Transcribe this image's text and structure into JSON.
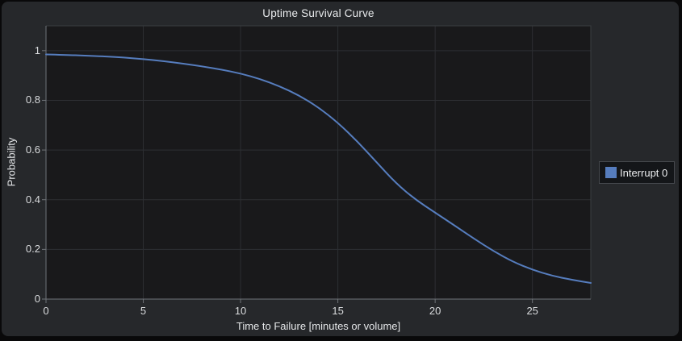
{
  "chart_data": {
    "type": "line",
    "title": "Uptime Survival Curve",
    "xlabel": "Time to Failure [minutes or volume]",
    "ylabel": "Probability",
    "xlim": [
      0,
      28
    ],
    "ylim": [
      0,
      1.1
    ],
    "grid": true,
    "legend_position": "right",
    "x_ticks": [
      0,
      5,
      10,
      15,
      20,
      25
    ],
    "x_tick_labels": [
      "0",
      "5",
      "10",
      "15",
      "20",
      "25"
    ],
    "y_ticks": [
      0,
      0.2,
      0.4,
      0.6,
      0.8,
      1
    ],
    "y_tick_labels": [
      "0",
      "0.2",
      "0.4",
      "0.6",
      "0.8",
      "1"
    ],
    "series": [
      {
        "name": "Interrupt 0",
        "color": "#567dbe",
        "x": [
          0,
          1,
          2,
          3,
          4,
          5,
          6,
          7,
          8,
          9,
          10,
          11,
          12,
          13,
          14,
          15,
          16,
          17,
          18,
          19,
          20,
          21,
          22,
          23,
          24,
          25,
          26,
          27,
          28
        ],
        "y": [
          0.985,
          0.983,
          0.98,
          0.977,
          0.972,
          0.966,
          0.958,
          0.948,
          0.937,
          0.924,
          0.908,
          0.886,
          0.857,
          0.82,
          0.772,
          0.71,
          0.635,
          0.55,
          0.465,
          0.4,
          0.348,
          0.296,
          0.243,
          0.193,
          0.15,
          0.118,
          0.094,
          0.078,
          0.065
        ]
      }
    ]
  },
  "colors": {
    "outer_background": "#09090a",
    "panel_background": "#26282b",
    "plot_background": "#19191b",
    "gridline": "#2d2f33",
    "plot_border": "#3b3e42",
    "axis_line": "#6f7378",
    "text": "#e6e8ea",
    "accent": "#567dbe"
  }
}
